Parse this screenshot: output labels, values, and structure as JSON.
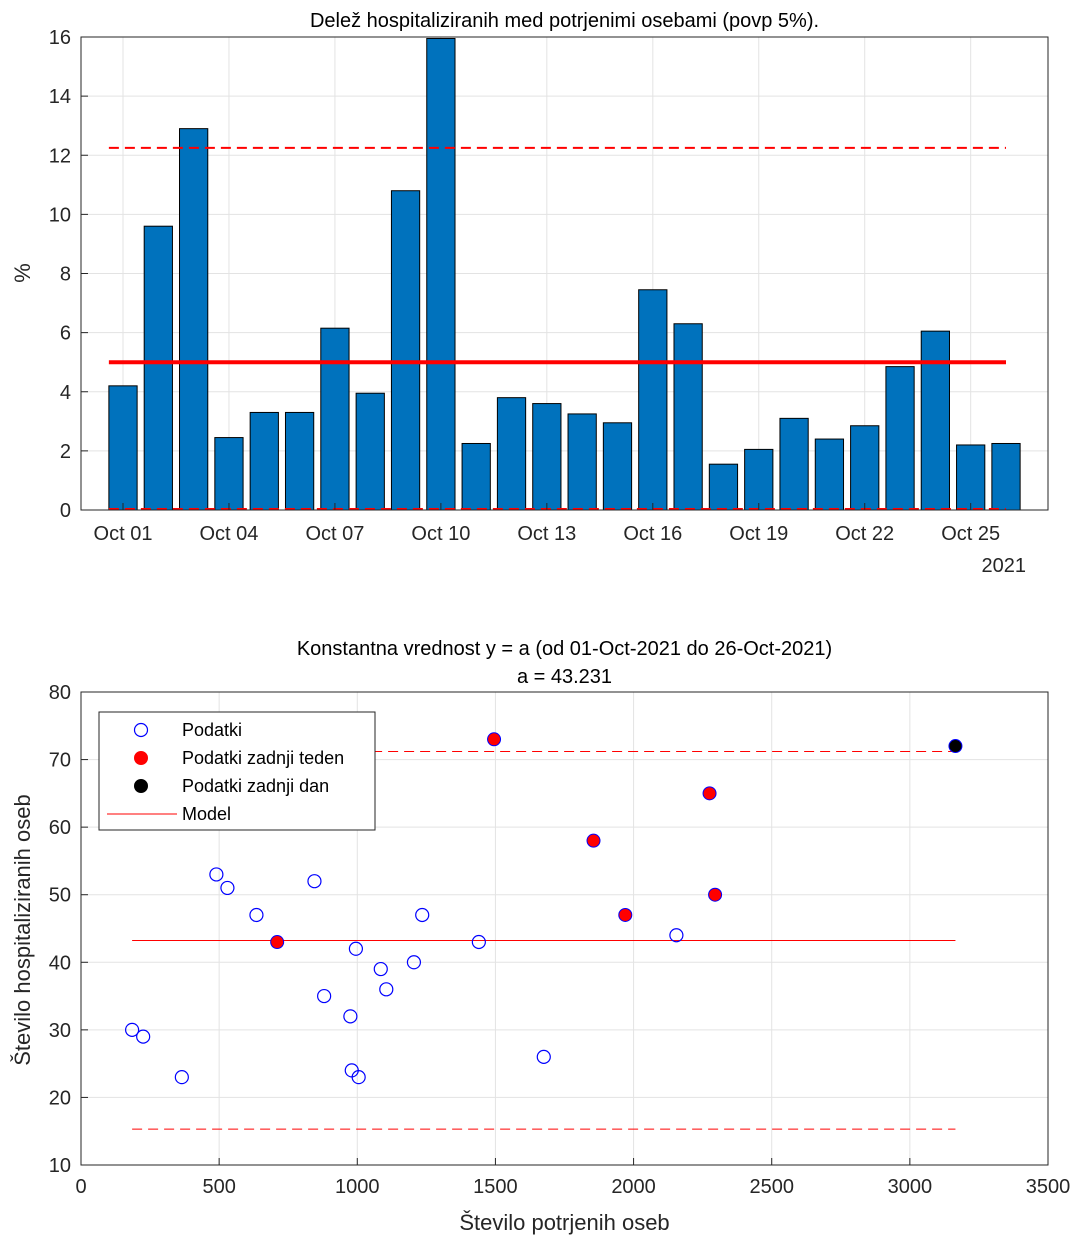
{
  "chart_data": [
    {
      "type": "bar",
      "title": "Delež hospitaliziranih med potrjenimi osebami (povp 5%).",
      "xlabel": "",
      "ylabel": "%",
      "year_label": "2021",
      "ylim": [
        0,
        16
      ],
      "yticks": [
        "0",
        "2",
        "4",
        "6",
        "8",
        "10",
        "12",
        "14",
        "16"
      ],
      "grid": true,
      "bar_color": "#0072bd",
      "categories": [
        "Oct 01",
        "Oct 02",
        "Oct 03",
        "Oct 04",
        "Oct 05",
        "Oct 06",
        "Oct 07",
        "Oct 08",
        "Oct 09",
        "Oct 10",
        "Oct 11",
        "Oct 12",
        "Oct 13",
        "Oct 14",
        "Oct 15",
        "Oct 16",
        "Oct 17",
        "Oct 18",
        "Oct 19",
        "Oct 20",
        "Oct 21",
        "Oct 22",
        "Oct 23",
        "Oct 24",
        "Oct 25",
        "Oct 26"
      ],
      "xtick_labels": [
        "Oct 01",
        "Oct 04",
        "Oct 07",
        "Oct 10",
        "Oct 13",
        "Oct 16",
        "Oct 19",
        "Oct 22",
        "Oct 25"
      ],
      "values": [
        4.2,
        9.6,
        12.9,
        2.45,
        3.3,
        3.3,
        6.15,
        3.95,
        10.8,
        15.95,
        2.25,
        3.8,
        3.6,
        3.25,
        2.95,
        7.45,
        6.3,
        1.55,
        2.05,
        3.1,
        2.4,
        2.85,
        4.85,
        6.05,
        2.2,
        2.25
      ],
      "mean_line": 5.0,
      "upper_bound": 12.25,
      "lower_bound": 0,
      "line_color": "#ff0000"
    },
    {
      "type": "scatter",
      "title": "Konstantna vrednost y = a (od 01-Oct-2021 do 26-Oct-2021)",
      "subtitle": "a = 43.231",
      "xlabel": "Število potrjenih oseb",
      "ylabel": "Število hospitaliziranih oseb",
      "xlim": [
        0,
        3500
      ],
      "ylim": [
        10,
        80
      ],
      "xticks": [
        "0",
        "500",
        "1000",
        "1500",
        "2000",
        "2500",
        "3000",
        "3500"
      ],
      "yticks": [
        "10",
        "20",
        "30",
        "40",
        "50",
        "60",
        "70",
        "80"
      ],
      "grid": true,
      "legend_position": "top-left",
      "legend": [
        "Podatki",
        "Podatki zadnji teden",
        "Podatki zadnji dan",
        "Model"
      ],
      "series": [
        {
          "name": "Podatki",
          "color": "#0000ff",
          "marker": "open-circle",
          "points": [
            [
              185,
              30
            ],
            [
              225,
              29
            ],
            [
              365,
              23
            ],
            [
              490,
              53
            ],
            [
              530,
              51
            ],
            [
              635,
              47
            ],
            [
              845,
              52
            ],
            [
              880,
              35
            ],
            [
              975,
              32
            ],
            [
              980,
              24
            ],
            [
              995,
              42
            ],
            [
              1005,
              23
            ],
            [
              1085,
              39
            ],
            [
              1105,
              36
            ],
            [
              1205,
              40
            ],
            [
              1235,
              47
            ],
            [
              1440,
              43
            ],
            [
              1675,
              26
            ],
            [
              2155,
              44
            ]
          ]
        },
        {
          "name": "Podatki zadnji teden",
          "color": "#ff0000",
          "marker": "filled-circle",
          "points": [
            [
              710,
              43
            ],
            [
              1495,
              73
            ],
            [
              1855,
              58
            ],
            [
              1970,
              47
            ],
            [
              2275,
              65
            ],
            [
              2295,
              50
            ]
          ]
        },
        {
          "name": "Podatki zadnji dan",
          "color": "#000000",
          "marker": "filled-circle",
          "points": [
            [
              3165,
              72
            ]
          ]
        },
        {
          "name": "Model",
          "color": "#ff0000",
          "marker": "line",
          "x_range": [
            185,
            3165
          ],
          "value": 43.231,
          "upper_bound": 71.2,
          "lower_bound": 15.3
        }
      ]
    }
  ]
}
